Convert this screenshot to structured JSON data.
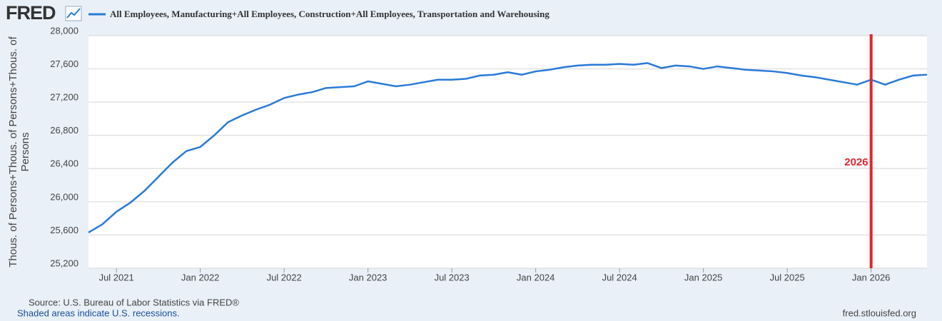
{
  "logo": "FRED",
  "chart_data": {
    "type": "line",
    "x": [
      "2021-05",
      "2021-06",
      "2021-07",
      "2021-08",
      "2021-09",
      "2021-10",
      "2021-11",
      "2021-12",
      "2022-01",
      "2022-02",
      "2022-03",
      "2022-04",
      "2022-05",
      "2022-06",
      "2022-07",
      "2022-08",
      "2022-09",
      "2022-10",
      "2022-11",
      "2022-12",
      "2023-01",
      "2023-02",
      "2023-03",
      "2023-04",
      "2023-05",
      "2023-06",
      "2023-07",
      "2023-08",
      "2023-09",
      "2023-10",
      "2023-11",
      "2023-12",
      "2024-01",
      "2024-02",
      "2024-03",
      "2024-04",
      "2024-05",
      "2024-06",
      "2024-07",
      "2024-08",
      "2024-09",
      "2024-10",
      "2024-11",
      "2024-12",
      "2025-01",
      "2025-02",
      "2025-03",
      "2025-04",
      "2025-05",
      "2025-06",
      "2025-07",
      "2025-08",
      "2025-09",
      "2025-10",
      "2025-11",
      "2025-12",
      "2026-01",
      "2026-02",
      "2026-03",
      "2026-04",
      "2026-05"
    ],
    "series": [
      {
        "name": "All Employees, Manufacturing+All Employees, Construction+All Employees, Transportation and Warehousing",
        "color": "#2a7ad6",
        "values": [
          25630,
          25730,
          25880,
          25990,
          26130,
          26300,
          26470,
          26610,
          26660,
          26800,
          26960,
          27040,
          27110,
          27170,
          27250,
          27290,
          27320,
          27370,
          27380,
          27390,
          27450,
          27420,
          27390,
          27410,
          27440,
          27470,
          27470,
          27480,
          27520,
          27530,
          27560,
          27530,
          27570,
          27590,
          27620,
          27640,
          27650,
          27650,
          27660,
          27650,
          27670,
          27610,
          27640,
          27630,
          27600,
          27630,
          27610,
          27590,
          27580,
          27570,
          27550,
          27520,
          27500,
          27470,
          27440,
          27410,
          27470,
          27410,
          27470,
          27520,
          27530
        ]
      }
    ],
    "xlim": [
      "2021-05",
      "2026-05"
    ],
    "xticks": [
      {
        "value": "2021-07",
        "label": "Jul 2021"
      },
      {
        "value": "2022-01",
        "label": "Jan 2022"
      },
      {
        "value": "2022-07",
        "label": "Jul 2022"
      },
      {
        "value": "2023-01",
        "label": "Jan 2023"
      },
      {
        "value": "2023-07",
        "label": "Jul 2023"
      },
      {
        "value": "2024-01",
        "label": "Jan 2024"
      },
      {
        "value": "2024-07",
        "label": "Jul 2024"
      },
      {
        "value": "2025-01",
        "label": "Jan 2025"
      },
      {
        "value": "2025-07",
        "label": "Jul 2025"
      },
      {
        "value": "2026-01",
        "label": "Jan 2026"
      }
    ],
    "ylim": [
      25200,
      28000
    ],
    "yticks": [
      {
        "value": 25200,
        "label": "25,200"
      },
      {
        "value": 25600,
        "label": "25,600"
      },
      {
        "value": 26000,
        "label": "26,000"
      },
      {
        "value": 26400,
        "label": "26,400"
      },
      {
        "value": 26800,
        "label": "26,800"
      },
      {
        "value": 27200,
        "label": "27,200"
      },
      {
        "value": 27600,
        "label": "27,600"
      },
      {
        "value": 28000,
        "label": "28,000"
      }
    ],
    "y_label": "Thous. of Persons+Thous. of Persons+Thous. of Persons",
    "grid": true,
    "annotations": [
      {
        "x": "2026-01",
        "label": "2026",
        "color": "#e0262e"
      }
    ],
    "source": "Source: U.S. Bureau of Labor Statistics via FRED®",
    "note": "Shaded areas indicate U.S. recessions.",
    "url": "fred.stlouisfed.org"
  }
}
